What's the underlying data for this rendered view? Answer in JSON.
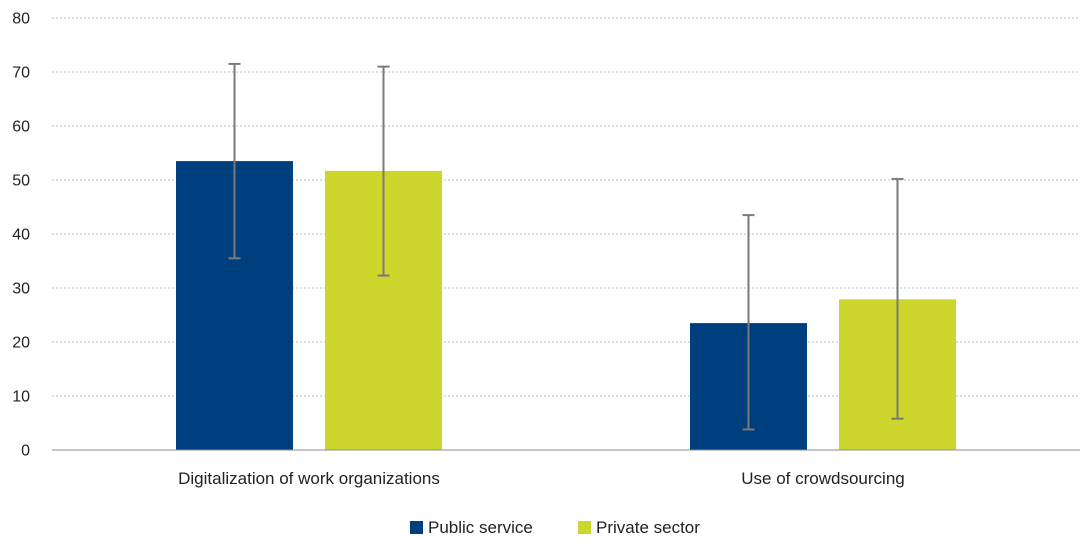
{
  "chart_data": {
    "type": "bar",
    "categories": [
      "Digitalization of work organizations",
      "Use of crowdsourcing"
    ],
    "series": [
      {
        "name": "Public service",
        "color": "#003F7D",
        "values": [
          53.5,
          23.5
        ],
        "error_low": [
          35.5,
          3.8
        ],
        "error_high": [
          71.5,
          43.5
        ]
      },
      {
        "name": "Private sector",
        "color": "#CDD62C",
        "values": [
          51.7,
          27.9
        ],
        "error_low": [
          32.3,
          5.8
        ],
        "error_high": [
          71.0,
          50.2
        ]
      }
    ],
    "ylim": [
      0,
      80
    ],
    "yticks": [
      0,
      10,
      20,
      30,
      40,
      50,
      60,
      70,
      80
    ],
    "grid": true,
    "legend": "bottom-center",
    "title": "",
    "xlabel": "",
    "ylabel": ""
  }
}
